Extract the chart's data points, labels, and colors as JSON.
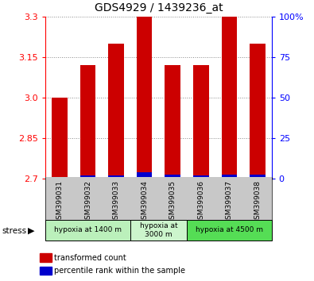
{
  "title": "GDS4929 / 1439236_at",
  "samples": [
    "GSM399031",
    "GSM399032",
    "GSM399033",
    "GSM399034",
    "GSM399035",
    "GSM399036",
    "GSM399037",
    "GSM399038"
  ],
  "red_values": [
    3.0,
    3.12,
    3.2,
    3.3,
    3.12,
    3.12,
    3.3,
    3.2
  ],
  "blue_values": [
    0.5,
    2.0,
    2.0,
    4.0,
    2.5,
    2.0,
    2.5,
    2.5
  ],
  "ymin": 2.7,
  "ymax": 3.3,
  "yticks_left": [
    2.7,
    2.85,
    3.0,
    3.15,
    3.3
  ],
  "yticks_right": [
    0,
    25,
    50,
    75,
    100
  ],
  "groups": [
    {
      "label": "hypoxia at 1400 m",
      "start": 0,
      "end": 3,
      "color": "#bbf0bb"
    },
    {
      "label": "hypoxia at\n3000 m",
      "start": 3,
      "end": 5,
      "color": "#ccf5cc"
    },
    {
      "label": "hypoxia at 4500 m",
      "start": 5,
      "end": 8,
      "color": "#55dd55"
    }
  ],
  "bar_width": 0.55,
  "red_color": "#cc0000",
  "blue_color": "#0000cc",
  "grid_color": "#888888",
  "tick_area_color": "#c8c8c8",
  "stress_label": "stress",
  "legend_red": "transformed count",
  "legend_blue": "percentile rank within the sample",
  "title_fontsize": 10,
  "axis_fontsize": 8
}
